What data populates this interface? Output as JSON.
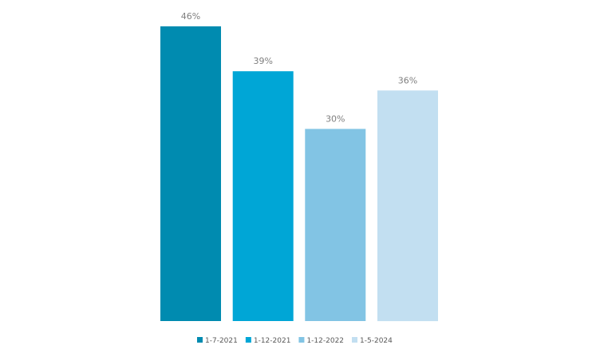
{
  "chart_data": {
    "type": "bar",
    "categories": [
      "1-7-2021",
      "1-12-2021",
      "1-12-2022",
      "1-5-2024"
    ],
    "values": [
      46,
      39,
      30,
      36
    ],
    "value_labels": [
      "46%",
      "39%",
      "30%",
      "36%"
    ],
    "colors": [
      "#008BB0",
      "#00A6D6",
      "#82C4E4",
      "#C2DFF1"
    ],
    "ylim": [
      0,
      48
    ],
    "grid": false,
    "legend_position": "bottom",
    "title": "",
    "xlabel": "",
    "ylabel": ""
  }
}
